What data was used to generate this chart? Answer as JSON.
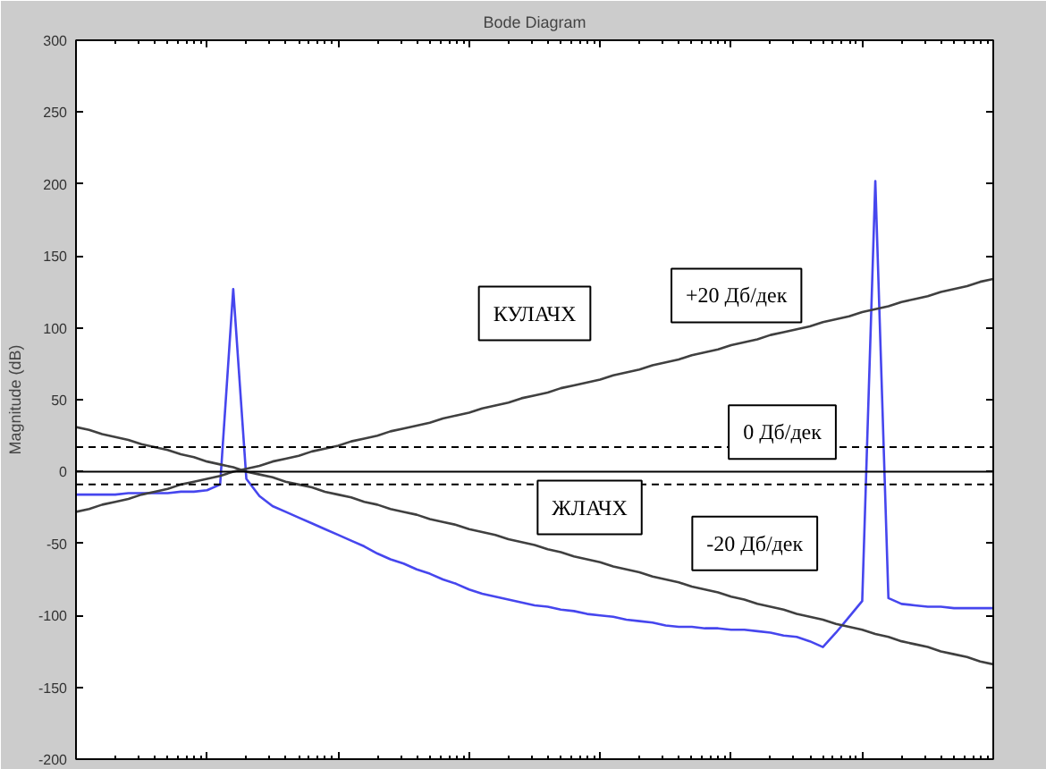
{
  "chart_data": {
    "type": "line",
    "title": "Bode Diagram",
    "ylabel": "Magnitude (dB)",
    "categories": [
      null,
      null,
      null,
      null,
      null,
      null,
      null,
      null,
      null,
      null,
      null,
      null,
      null,
      null,
      null,
      null,
      null,
      null,
      null,
      null,
      null,
      null,
      null,
      null,
      null,
      null,
      null,
      null,
      null,
      null,
      null,
      null,
      null,
      null,
      null,
      null,
      null,
      null,
      null,
      null,
      null,
      null,
      null,
      null,
      null,
      null,
      null,
      null,
      null,
      null,
      null,
      null,
      null,
      null,
      null,
      null,
      null,
      null,
      null,
      null,
      null,
      null,
      null,
      null,
      null,
      null,
      null,
      null,
      null,
      null,
      null
    ],
    "ylim": [
      -200,
      300
    ],
    "yticks": [
      -200,
      -150,
      -100,
      -50,
      0,
      50,
      100,
      150,
      200,
      250,
      300
    ],
    "tick_labels": "y",
    "series": [
      {
        "color": "#4646ee",
        "values": [
          -16,
          -16,
          -16,
          -16,
          -15,
          -15,
          -15,
          -15,
          -14,
          -14,
          -13,
          -9,
          127,
          -5,
          -17,
          -24,
          -28,
          -32,
          -36,
          -40,
          -44,
          -48,
          -52,
          -57,
          -61,
          -64,
          -68,
          -71,
          -75,
          -78,
          -82,
          -85,
          -87,
          -89,
          -91,
          -93,
          -94,
          -96,
          -97,
          -99,
          -100,
          -101,
          -103,
          -104,
          -105,
          -107,
          -108,
          -108,
          -109,
          -109,
          -110,
          -110,
          -111,
          -112,
          -114,
          -115,
          -118,
          -122,
          -112,
          -101,
          -90,
          202,
          -88,
          -92,
          -93,
          -94,
          -94,
          -95,
          -95,
          -95,
          -95
        ]
      },
      {
        "color": "#404040",
        "values": [
          -28,
          -26,
          -23,
          -21,
          -19,
          -16,
          -14,
          -12,
          -9,
          -7,
          -5,
          -3,
          0,
          2,
          4,
          7,
          9,
          11,
          14,
          16,
          18,
          21,
          23,
          25,
          28,
          30,
          32,
          34,
          37,
          39,
          41,
          44,
          46,
          48,
          51,
          53,
          55,
          58,
          60,
          62,
          64,
          67,
          69,
          71,
          74,
          76,
          78,
          81,
          83,
          85,
          88,
          90,
          92,
          95,
          97,
          99,
          101,
          104,
          106,
          108,
          111,
          113,
          115,
          118,
          120,
          122,
          125,
          127,
          129,
          132,
          134
        ]
      },
      {
        "color": "#404040",
        "values": [
          31,
          29,
          26,
          24,
          22,
          19,
          17,
          15,
          12,
          10,
          7,
          5,
          3,
          0,
          -2,
          -4,
          -7,
          -9,
          -11,
          -14,
          -16,
          -18,
          -21,
          -23,
          -26,
          -28,
          -30,
          -33,
          -35,
          -37,
          -40,
          -42,
          -44,
          -47,
          -49,
          -51,
          -54,
          -56,
          -59,
          -61,
          -63,
          -66,
          -68,
          -70,
          -73,
          -75,
          -77,
          -80,
          -82,
          -84,
          -87,
          -89,
          -92,
          -94,
          -96,
          -99,
          -101,
          -103,
          -106,
          -108,
          -110,
          -113,
          -115,
          -118,
          -120,
          -122,
          -125,
          -127,
          -129,
          -132,
          -134
        ]
      }
    ],
    "ref_lines": [
      {
        "axis": "y",
        "value": 17,
        "line_style": "dashed",
        "color": "#000000"
      },
      {
        "axis": "y",
        "value": 0,
        "line_style": "solid",
        "color": "#000000"
      },
      {
        "axis": "y",
        "value": -9,
        "line_style": "dashed",
        "color": "#000000"
      }
    ],
    "annotations": [
      "КУЛАЧХ",
      "+20 Дб/дек",
      "0 Дб/дек",
      "ЖЛАЧХ",
      "-20 Дб/дек"
    ]
  }
}
